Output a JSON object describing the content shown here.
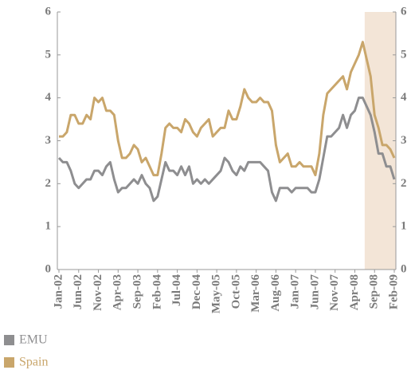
{
  "chart_data": {
    "type": "line",
    "categories": [
      "Jan-02",
      null,
      null,
      null,
      null,
      "Jun-02",
      null,
      null,
      null,
      null,
      "Nov-02",
      null,
      null,
      null,
      null,
      "Apr-03",
      null,
      null,
      null,
      null,
      "Sep-03",
      null,
      null,
      null,
      null,
      "Feb-04",
      null,
      null,
      null,
      null,
      "Jul-04",
      null,
      null,
      null,
      null,
      "Dec-04",
      null,
      null,
      null,
      null,
      "May-05",
      null,
      null,
      null,
      null,
      "Oct-05",
      null,
      null,
      null,
      null,
      "Mar-06",
      null,
      null,
      null,
      null,
      "Aug-06",
      null,
      null,
      null,
      null,
      "Jan-07",
      null,
      null,
      null,
      null,
      "Jun-07",
      null,
      null,
      null,
      null,
      "Nov-07",
      null,
      null,
      null,
      null,
      "Apr-08",
      null,
      null,
      null,
      null,
      "Sep-08",
      null,
      null,
      null,
      null,
      "Feb-09"
    ],
    "series": [
      {
        "name": "EMU",
        "color": "#8e8e90",
        "values": [
          2.6,
          2.5,
          2.5,
          2.3,
          2.0,
          1.9,
          2.0,
          2.1,
          2.1,
          2.3,
          2.3,
          2.2,
          2.4,
          2.5,
          2.1,
          1.8,
          1.9,
          1.9,
          2.0,
          2.1,
          2.0,
          2.2,
          2.0,
          1.9,
          1.6,
          1.7,
          2.1,
          2.5,
          2.3,
          2.3,
          2.2,
          2.4,
          2.2,
          2.4,
          2.0,
          2.1,
          2.0,
          2.1,
          2.0,
          2.1,
          2.2,
          2.3,
          2.6,
          2.5,
          2.3,
          2.2,
          2.4,
          2.3,
          2.5,
          2.5,
          2.5,
          2.5,
          2.4,
          2.3,
          1.8,
          1.6,
          1.9,
          1.9,
          1.9,
          1.8,
          1.9,
          1.9,
          1.9,
          1.9,
          1.8,
          1.8,
          2.1,
          2.6,
          3.1,
          3.1,
          3.2,
          3.3,
          3.6,
          3.3,
          3.6,
          3.7,
          4.0,
          4.0,
          3.8,
          3.6,
          3.2,
          2.7,
          2.7,
          2.4,
          2.4,
          2.1
        ]
      },
      {
        "name": "Spain",
        "color": "#c9a66b",
        "values": [
          3.1,
          3.1,
          3.2,
          3.6,
          3.6,
          3.4,
          3.4,
          3.6,
          3.5,
          4.0,
          3.9,
          4.0,
          3.7,
          3.7,
          3.6,
          3.0,
          2.6,
          2.6,
          2.7,
          2.9,
          2.8,
          2.5,
          2.6,
          2.4,
          2.2,
          2.2,
          2.7,
          3.3,
          3.4,
          3.3,
          3.3,
          3.2,
          3.5,
          3.4,
          3.2,
          3.1,
          3.3,
          3.4,
          3.5,
          3.1,
          3.2,
          3.3,
          3.3,
          3.7,
          3.5,
          3.5,
          3.8,
          4.2,
          4.0,
          3.9,
          3.9,
          4.0,
          3.9,
          3.9,
          3.7,
          2.9,
          2.5,
          2.6,
          2.7,
          2.4,
          2.4,
          2.5,
          2.4,
          2.4,
          2.4,
          2.2,
          2.7,
          3.6,
          4.1,
          4.2,
          4.3,
          4.4,
          4.5,
          4.2,
          4.6,
          4.8,
          5.0,
          5.3,
          4.9,
          4.5,
          3.6,
          3.3,
          2.9,
          2.9,
          2.8,
          2.6
        ]
      }
    ],
    "ylim": [
      0,
      6
    ],
    "yticks": [
      0,
      1,
      2,
      3,
      4,
      5,
      6
    ],
    "y2lim": [
      0,
      6
    ],
    "y2ticks": [
      0,
      1,
      2,
      3,
      4,
      5,
      6
    ],
    "highlight": [
      78,
      85
    ],
    "highlight_color": "#f3e5d7",
    "grid": false,
    "legend": "bottom-left"
  }
}
